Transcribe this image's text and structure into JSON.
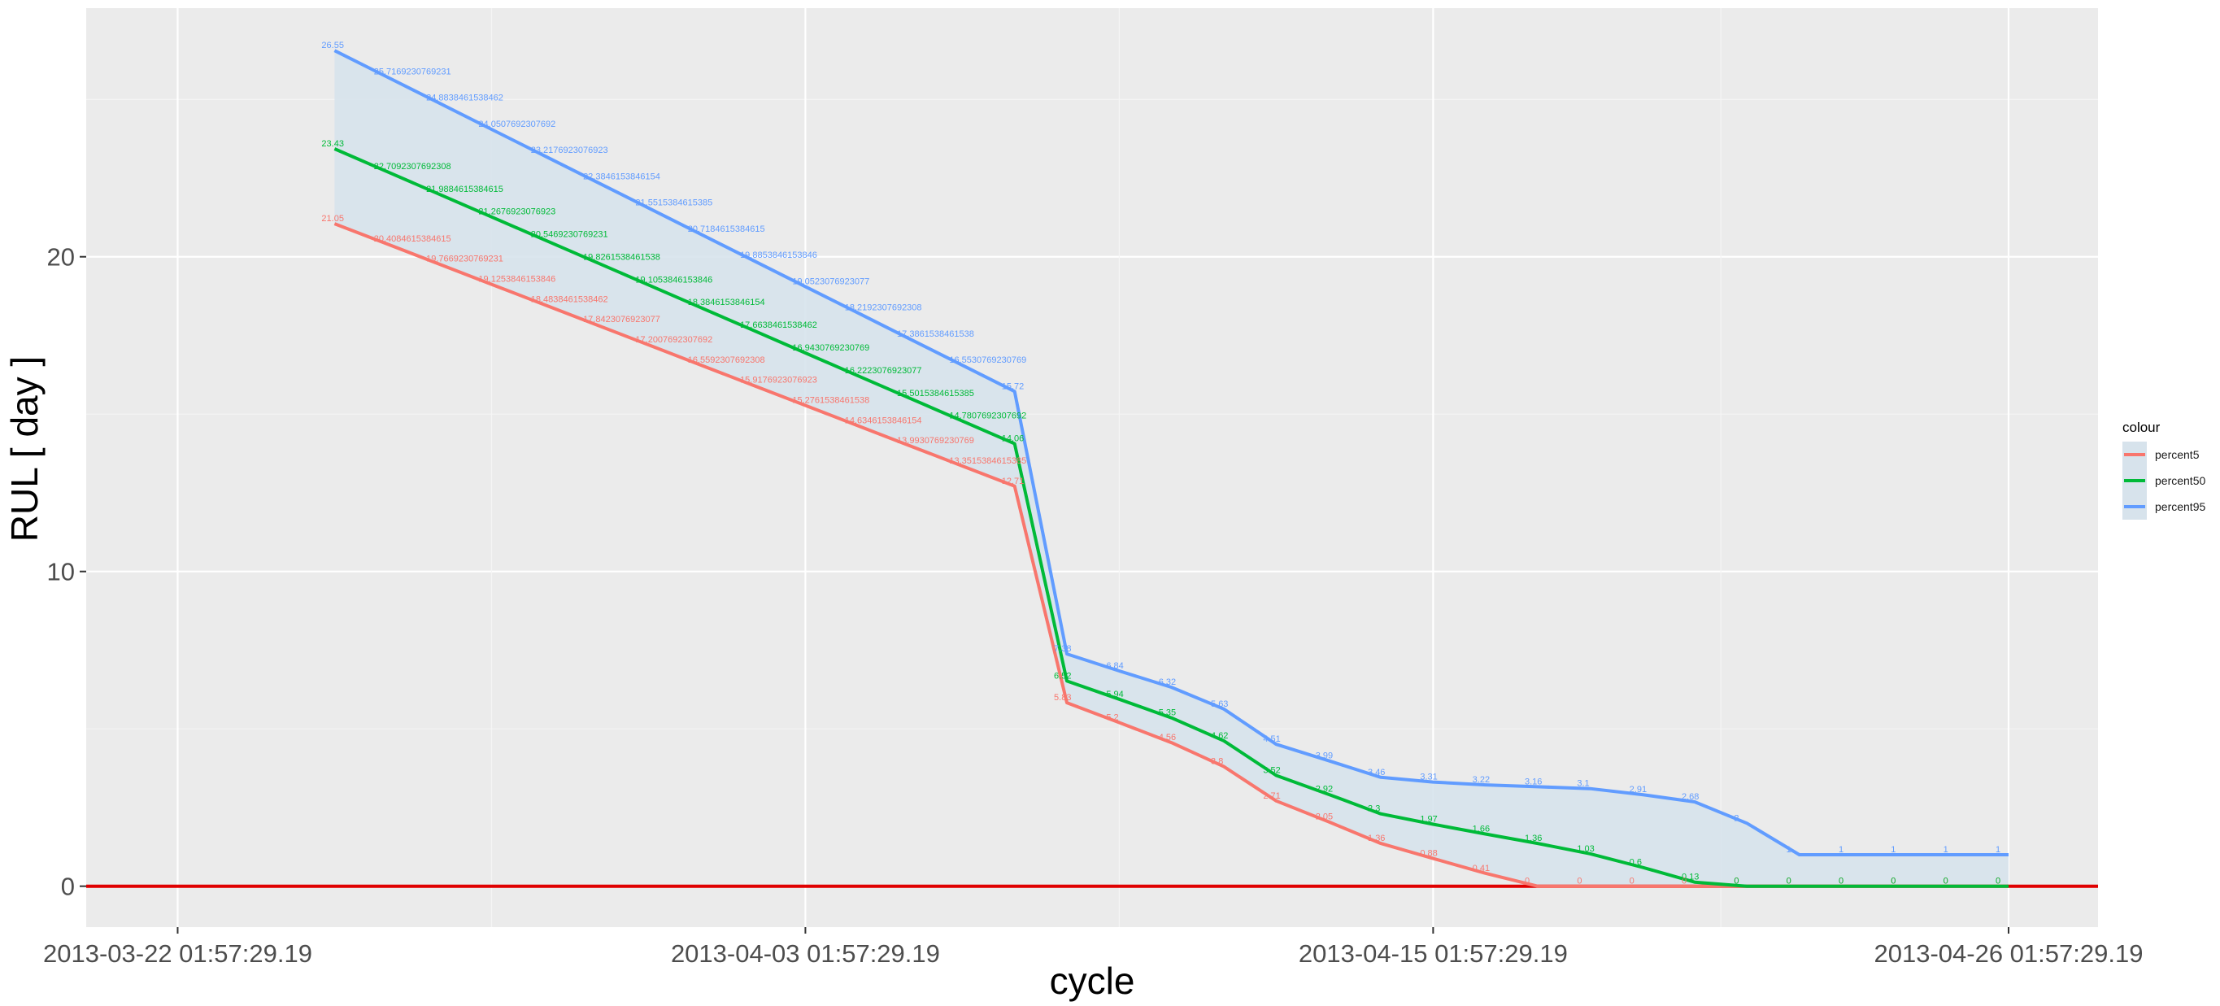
{
  "chart_data": {
    "type": "line",
    "title": "",
    "xlabel": "cycle",
    "ylabel": "RUL [ day ]",
    "x_tick_labels": [
      {
        "x": "2013-03-22 01:57:29.19",
        "label": "2013-03-22 01:57:29.19"
      },
      {
        "x": "2013-04-03 01:57:29.19",
        "label": "2013-04-03 01:57:29.19"
      },
      {
        "x": "2013-04-15 01:57:29.19",
        "label": "2013-04-15 01:57:29.19"
      },
      {
        "x": "2013-04-26 01:57:29.19",
        "label": "2013-04-26 01:57:29.19"
      }
    ],
    "y_ticks": [
      0,
      10,
      20
    ],
    "ylim": [
      -1.3,
      27.9
    ],
    "xlim": [
      "2013-03-20 08:00",
      "2013-04-27 19:00"
    ],
    "grid": true,
    "reference_line": {
      "y": 0,
      "color": "#e00000"
    },
    "legend": {
      "title": "colour",
      "position": "right"
    },
    "band": {
      "lower": "percent5",
      "upper": "percent95",
      "color": "#d7e3ec"
    },
    "x": [
      "2013-03-25 01:57",
      "2013-03-26 01:57",
      "2013-03-27 01:57",
      "2013-03-28 01:57",
      "2013-03-29 01:57",
      "2013-03-30 01:57",
      "2013-03-31 01:57",
      "2013-04-01 01:57",
      "2013-04-02 01:57",
      "2013-04-03 01:57",
      "2013-04-04 01:57",
      "2013-04-05 01:57",
      "2013-04-06 01:57",
      "2013-04-07 01:57",
      "2013-04-08 01:57",
      "2013-04-09 01:57",
      "2013-04-10 01:57",
      "2013-04-11 01:57",
      "2013-04-12 01:57",
      "2013-04-13 01:57",
      "2013-04-14 01:57",
      "2013-04-15 01:57",
      "2013-04-16 01:57",
      "2013-04-17 01:57",
      "2013-04-18 01:57",
      "2013-04-19 01:57",
      "2013-04-20 01:57",
      "2013-04-21 01:57",
      "2013-04-22 01:57",
      "2013-04-23 01:57",
      "2013-04-24 01:57",
      "2013-04-25 01:57",
      "2013-04-26 01:57"
    ],
    "series": [
      {
        "name": "percent5",
        "color": "#f8766d",
        "values": [
          21.05,
          20.4084615384615,
          19.7669230769231,
          19.1253846153846,
          18.4838461538462,
          17.8423076923077,
          17.2007692307692,
          16.5592307692308,
          15.9176923076923,
          15.2761538461538,
          14.6346153846154,
          13.9930769230769,
          13.3515384615385,
          12.71,
          5.83,
          5.2,
          4.56,
          3.8,
          2.71,
          2.05,
          1.36,
          0.88,
          0.41,
          0,
          0,
          0,
          0,
          0,
          0,
          0,
          0,
          0,
          0
        ],
        "labels": [
          "21.05",
          "20.4084615384615",
          "19.7669230769231",
          "19.1253846153846",
          "18.4838461538462",
          "17.8423076923077",
          "17.2007692307692",
          "16.5592307692308",
          "15.9176923076923",
          "15.2761538461538",
          "14.6346153846154",
          "13.9930769230769",
          "13.3515384615385",
          "12.71",
          "5.83",
          "5.2",
          "4.56",
          "3.8",
          "2.71",
          "2.05",
          "1.36",
          "0.88",
          "0.41",
          "0",
          "0",
          "0",
          "0",
          "0",
          "0",
          "0",
          "0",
          "0",
          "0"
        ]
      },
      {
        "name": "percent50",
        "color": "#00ba38",
        "values": [
          23.43,
          22.7092307692308,
          21.9884615384615,
          21.2676923076923,
          20.5469230769231,
          19.8261538461538,
          19.1053846153846,
          18.3846153846154,
          17.6638461538462,
          16.9430769230769,
          16.2223076923077,
          15.5015384615385,
          14.7807692307692,
          14.06,
          6.52,
          5.94,
          5.35,
          4.62,
          3.52,
          2.92,
          2.3,
          1.97,
          1.66,
          1.36,
          1.03,
          0.6,
          0.13,
          0,
          0,
          0,
          0,
          0,
          0
        ],
        "labels": [
          "23.43",
          "22.7092307692308",
          "21.9884615384615",
          "21.2676923076923",
          "20.5469230769231",
          "19.8261538461538",
          "19.1053846153846",
          "18.3846153846154",
          "17.6638461538462",
          "16.9430769230769",
          "16.2223076923077",
          "15.5015384615385",
          "14.7807692307692",
          "14.06",
          "6.52",
          "5.94",
          "5.35",
          "4.62",
          "3.52",
          "2.92",
          "2.3",
          "1.97",
          "1.66",
          "1.36",
          "1.03",
          "0.6",
          "0.13",
          "0",
          "0",
          "0",
          "0",
          "0",
          "0"
        ]
      },
      {
        "name": "percent95",
        "color": "#619cff",
        "values": [
          26.55,
          25.7169230769231,
          24.8838461538462,
          24.0507692307692,
          23.2176923076923,
          22.3846153846154,
          21.5515384615385,
          20.7184615384615,
          19.8853846153846,
          19.0523076923077,
          18.2192307692308,
          17.3861538461538,
          16.5530769230769,
          15.72,
          7.38,
          6.84,
          6.32,
          5.63,
          4.51,
          3.99,
          3.46,
          3.31,
          3.22,
          3.16,
          3.1,
          2.91,
          2.68,
          2,
          1,
          1,
          1,
          1,
          1
        ],
        "labels": [
          "26.55",
          "25.7169230769231",
          "24.8838461538462",
          "24.0507692307692",
          "23.2176923076923",
          "22.3846153846154",
          "21.5515384615385",
          "20.7184615384615",
          "19.8853846153846",
          "19.0523076923077",
          "18.2192307692308",
          "17.3861538461538",
          "16.5530769230769",
          "15.72",
          "7.38",
          "6.84",
          "6.32",
          "5.63",
          "4.51",
          "3.99",
          "3.46",
          "3.31",
          "3.22",
          "3.16",
          "3.1",
          "2.91",
          "2.68",
          "2",
          "1",
          "1",
          "1",
          "1",
          "1"
        ]
      }
    ]
  }
}
